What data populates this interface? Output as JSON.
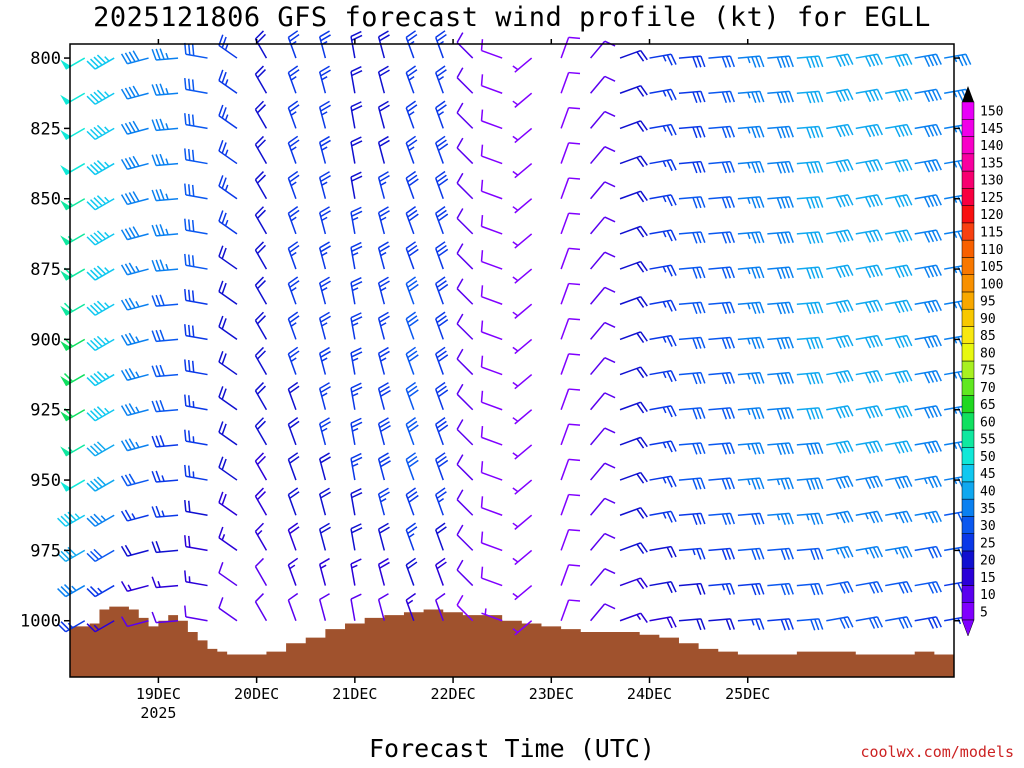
{
  "title": "2025121806 GFS forecast wind profile (kt) for EGLL",
  "xlabel": "Forecast Time (UTC)",
  "credit": "coolwx.com/models",
  "chart_data": {
    "type": "wind_barb_profile",
    "xaxis": {
      "range": [
        0,
        90
      ],
      "ticks": [
        {
          "x": 9,
          "label": "19DEC",
          "sublabel": "2025"
        },
        {
          "x": 19,
          "label": "20DEC",
          "sublabel": ""
        },
        {
          "x": 29,
          "label": "21DEC",
          "sublabel": ""
        },
        {
          "x": 39,
          "label": "22DEC",
          "sublabel": ""
        },
        {
          "x": 49,
          "label": "23DEC",
          "sublabel": ""
        },
        {
          "x": 59,
          "label": "24DEC",
          "sublabel": ""
        },
        {
          "x": 69,
          "label": "25DEC",
          "sublabel": ""
        }
      ]
    },
    "yaxis": {
      "range": [
        795,
        1020
      ],
      "ticks": [
        800,
        825,
        850,
        875,
        900,
        925,
        950,
        975,
        1000
      ],
      "levels": [
        800,
        812.5,
        825,
        837.5,
        850,
        862.5,
        875,
        887.5,
        900,
        912.5,
        925,
        937.5,
        950,
        962.5,
        975,
        987.5,
        1000
      ]
    },
    "colorbar": {
      "values": [
        5,
        10,
        15,
        20,
        25,
        30,
        35,
        40,
        45,
        50,
        55,
        60,
        65,
        70,
        75,
        80,
        85,
        90,
        95,
        100,
        105,
        110,
        115,
        120,
        125,
        130,
        135,
        140,
        145,
        150
      ],
      "colors": [
        "#8000ff",
        "#5a00f0",
        "#2a00d8",
        "#1010d0",
        "#0a38e8",
        "#0a58f0",
        "#0a80f0",
        "#10a8f0",
        "#10c8f0",
        "#10e8d8",
        "#10e8a0",
        "#10e060",
        "#20d820",
        "#60e820",
        "#a8f020",
        "#e8f810",
        "#f8e810",
        "#f8c800",
        "#f8a800",
        "#f89000",
        "#f87800",
        "#f86000",
        "#f84010",
        "#f81010",
        "#f80040",
        "#f80070",
        "#f800a0",
        "#f800c8",
        "#f000e8",
        "#e800f8"
      ]
    },
    "terrain_color": "#a0522d",
    "terrain": [
      {
        "x": 0,
        "p": 1002
      },
      {
        "x": 2,
        "p": 1001
      },
      {
        "x": 3,
        "p": 996
      },
      {
        "x": 4,
        "p": 995
      },
      {
        "x": 6,
        "p": 996
      },
      {
        "x": 7,
        "p": 999
      },
      {
        "x": 8,
        "p": 1002
      },
      {
        "x": 9,
        "p": 1000
      },
      {
        "x": 10,
        "p": 998
      },
      {
        "x": 11,
        "p": 1000
      },
      {
        "x": 12,
        "p": 1004
      },
      {
        "x": 13,
        "p": 1007
      },
      {
        "x": 14,
        "p": 1010
      },
      {
        "x": 15,
        "p": 1011
      },
      {
        "x": 16,
        "p": 1012
      },
      {
        "x": 18,
        "p": 1012
      },
      {
        "x": 20,
        "p": 1011
      },
      {
        "x": 22,
        "p": 1008
      },
      {
        "x": 24,
        "p": 1006
      },
      {
        "x": 26,
        "p": 1003
      },
      {
        "x": 28,
        "p": 1001
      },
      {
        "x": 30,
        "p": 999
      },
      {
        "x": 32,
        "p": 998
      },
      {
        "x": 34,
        "p": 997
      },
      {
        "x": 36,
        "p": 996
      },
      {
        "x": 38,
        "p": 997
      },
      {
        "x": 40,
        "p": 998
      },
      {
        "x": 42,
        "p": 998
      },
      {
        "x": 44,
        "p": 1000
      },
      {
        "x": 46,
        "p": 1001
      },
      {
        "x": 48,
        "p": 1002
      },
      {
        "x": 50,
        "p": 1003
      },
      {
        "x": 52,
        "p": 1004
      },
      {
        "x": 54,
        "p": 1004
      },
      {
        "x": 56,
        "p": 1004
      },
      {
        "x": 58,
        "p": 1005
      },
      {
        "x": 60,
        "p": 1006
      },
      {
        "x": 62,
        "p": 1008
      },
      {
        "x": 64,
        "p": 1010
      },
      {
        "x": 66,
        "p": 1011
      },
      {
        "x": 68,
        "p": 1012
      },
      {
        "x": 70,
        "p": 1012
      },
      {
        "x": 72,
        "p": 1012
      },
      {
        "x": 74,
        "p": 1011
      },
      {
        "x": 76,
        "p": 1011
      },
      {
        "x": 78,
        "p": 1011
      },
      {
        "x": 80,
        "p": 1012
      },
      {
        "x": 82,
        "p": 1012
      },
      {
        "x": 84,
        "p": 1012
      },
      {
        "x": 86,
        "p": 1011
      },
      {
        "x": 88,
        "p": 1012
      },
      {
        "x": 90,
        "p": 1012
      }
    ],
    "wind_columns": [
      {
        "x": 1.5,
        "dir": 240,
        "speed": [
          50,
          52,
          52,
          52,
          55,
          55,
          58,
          58,
          60,
          60,
          60,
          55,
          50,
          45,
          40,
          35,
          25
        ]
      },
      {
        "x": 4.5,
        "dir": 240,
        "speed": [
          45,
          45,
          45,
          45,
          45,
          45,
          45,
          45,
          45,
          45,
          45,
          40,
          40,
          35,
          30,
          25,
          15
        ]
      },
      {
        "x": 8,
        "dir": 255,
        "speed": [
          38,
          38,
          38,
          38,
          38,
          38,
          35,
          35,
          35,
          35,
          35,
          35,
          30,
          25,
          20,
          15,
          10
        ]
      },
      {
        "x": 11,
        "dir": 265,
        "speed": [
          35,
          35,
          35,
          35,
          35,
          35,
          35,
          30,
          30,
          30,
          30,
          28,
          25,
          25,
          20,
          15,
          10
        ]
      },
      {
        "x": 14,
        "dir": 280,
        "speed": [
          30,
          30,
          30,
          30,
          30,
          30,
          30,
          28,
          28,
          28,
          25,
          25,
          25,
          20,
          18,
          15,
          10
        ]
      },
      {
        "x": 17,
        "dir": 305,
        "speed": [
          25,
          25,
          25,
          25,
          25,
          25,
          22,
          22,
          22,
          22,
          20,
          20,
          20,
          18,
          15,
          12,
          10
        ]
      },
      {
        "x": 20,
        "dir": 330,
        "speed": [
          22,
          22,
          22,
          22,
          22,
          22,
          22,
          20,
          20,
          20,
          20,
          20,
          18,
          18,
          15,
          12,
          10
        ]
      },
      {
        "x": 23,
        "dir": 340,
        "speed": [
          25,
          25,
          25,
          25,
          25,
          25,
          25,
          25,
          25,
          25,
          22,
          22,
          20,
          20,
          18,
          15,
          12
        ]
      },
      {
        "x": 26,
        "dir": 345,
        "speed": [
          25,
          25,
          25,
          25,
          25,
          25,
          25,
          25,
          25,
          25,
          25,
          25,
          22,
          22,
          20,
          15,
          12
        ]
      },
      {
        "x": 29,
        "dir": 350,
        "speed": [
          22,
          22,
          22,
          22,
          22,
          25,
          25,
          25,
          25,
          25,
          25,
          25,
          25,
          22,
          20,
          15,
          12
        ]
      },
      {
        "x": 32,
        "dir": 345,
        "speed": [
          22,
          22,
          22,
          22,
          25,
          25,
          25,
          25,
          25,
          25,
          28,
          28,
          28,
          25,
          22,
          18,
          12
        ]
      },
      {
        "x": 35,
        "dir": 340,
        "speed": [
          25,
          25,
          25,
          25,
          28,
          28,
          28,
          30,
          30,
          30,
          30,
          30,
          30,
          28,
          25,
          20,
          15
        ]
      },
      {
        "x": 38,
        "dir": 340,
        "speed": [
          25,
          25,
          25,
          28,
          28,
          28,
          28,
          28,
          28,
          28,
          28,
          28,
          28,
          25,
          22,
          18,
          12
        ]
      },
      {
        "x": 41,
        "dir": 315,
        "speed": [
          10,
          10,
          10,
          12,
          12,
          12,
          12,
          12,
          12,
          12,
          12,
          12,
          12,
          12,
          10,
          10,
          8
        ]
      },
      {
        "x": 44,
        "dir": 290,
        "speed": [
          8,
          8,
          8,
          8,
          8,
          8,
          8,
          8,
          8,
          8,
          8,
          8,
          8,
          8,
          8,
          8,
          5
        ]
      },
      {
        "x": 47,
        "dir": 230,
        "speed": [
          5,
          5,
          5,
          5,
          5,
          5,
          5,
          5,
          5,
          5,
          5,
          5,
          5,
          5,
          5,
          5,
          5
        ]
      },
      {
        "x": 50,
        "dir": 20,
        "speed": [
          8,
          8,
          8,
          8,
          8,
          8,
          8,
          8,
          8,
          8,
          8,
          8,
          8,
          8,
          8,
          8,
          8
        ]
      },
      {
        "x": 53,
        "dir": 40,
        "speed": [
          10,
          10,
          10,
          10,
          10,
          10,
          10,
          10,
          10,
          10,
          10,
          10,
          10,
          10,
          10,
          10,
          10
        ]
      },
      {
        "x": 56,
        "dir": 70,
        "speed": [
          20,
          20,
          20,
          20,
          20,
          20,
          20,
          20,
          20,
          20,
          20,
          20,
          20,
          20,
          20,
          18,
          15
        ]
      },
      {
        "x": 59,
        "dir": 80,
        "speed": [
          25,
          25,
          25,
          25,
          25,
          25,
          25,
          25,
          25,
          25,
          25,
          25,
          25,
          25,
          22,
          20,
          18
        ]
      },
      {
        "x": 62,
        "dir": 85,
        "speed": [
          28,
          28,
          28,
          28,
          30,
          30,
          30,
          30,
          30,
          30,
          30,
          30,
          30,
          28,
          25,
          22,
          20
        ]
      },
      {
        "x": 65,
        "dir": 85,
        "speed": [
          30,
          30,
          30,
          30,
          32,
          32,
          32,
          32,
          32,
          32,
          32,
          32,
          32,
          30,
          28,
          25,
          22
        ]
      },
      {
        "x": 68,
        "dir": 85,
        "speed": [
          35,
          35,
          35,
          35,
          35,
          35,
          35,
          35,
          35,
          35,
          35,
          35,
          35,
          32,
          30,
          28,
          25
        ]
      },
      {
        "x": 71,
        "dir": 85,
        "speed": [
          38,
          38,
          38,
          38,
          38,
          38,
          38,
          38,
          38,
          38,
          38,
          38,
          35,
          35,
          32,
          30,
          28
        ]
      },
      {
        "x": 74,
        "dir": 85,
        "speed": [
          40,
          40,
          40,
          40,
          40,
          40,
          40,
          40,
          40,
          40,
          40,
          38,
          38,
          35,
          32,
          30,
          30
        ]
      },
      {
        "x": 77,
        "dir": 80,
        "speed": [
          42,
          42,
          42,
          42,
          40,
          40,
          40,
          40,
          40,
          40,
          40,
          40,
          38,
          35,
          35,
          30,
          30
        ]
      },
      {
        "x": 80,
        "dir": 80,
        "speed": [
          42,
          42,
          42,
          42,
          42,
          42,
          42,
          42,
          42,
          40,
          40,
          40,
          38,
          35,
          35,
          32,
          30
        ]
      },
      {
        "x": 83,
        "dir": 80,
        "speed": [
          40,
          40,
          40,
          40,
          40,
          40,
          40,
          40,
          40,
          40,
          40,
          40,
          38,
          35,
          35,
          32,
          30
        ]
      },
      {
        "x": 86,
        "dir": 80,
        "speed": [
          38,
          38,
          38,
          38,
          38,
          38,
          38,
          38,
          38,
          38,
          38,
          38,
          35,
          35,
          32,
          30,
          28
        ]
      },
      {
        "x": 89,
        "dir": 80,
        "speed": [
          35,
          35,
          35,
          35,
          35,
          35,
          35,
          35,
          35,
          35,
          35,
          35,
          35,
          32,
          30,
          28,
          25
        ]
      }
    ]
  }
}
